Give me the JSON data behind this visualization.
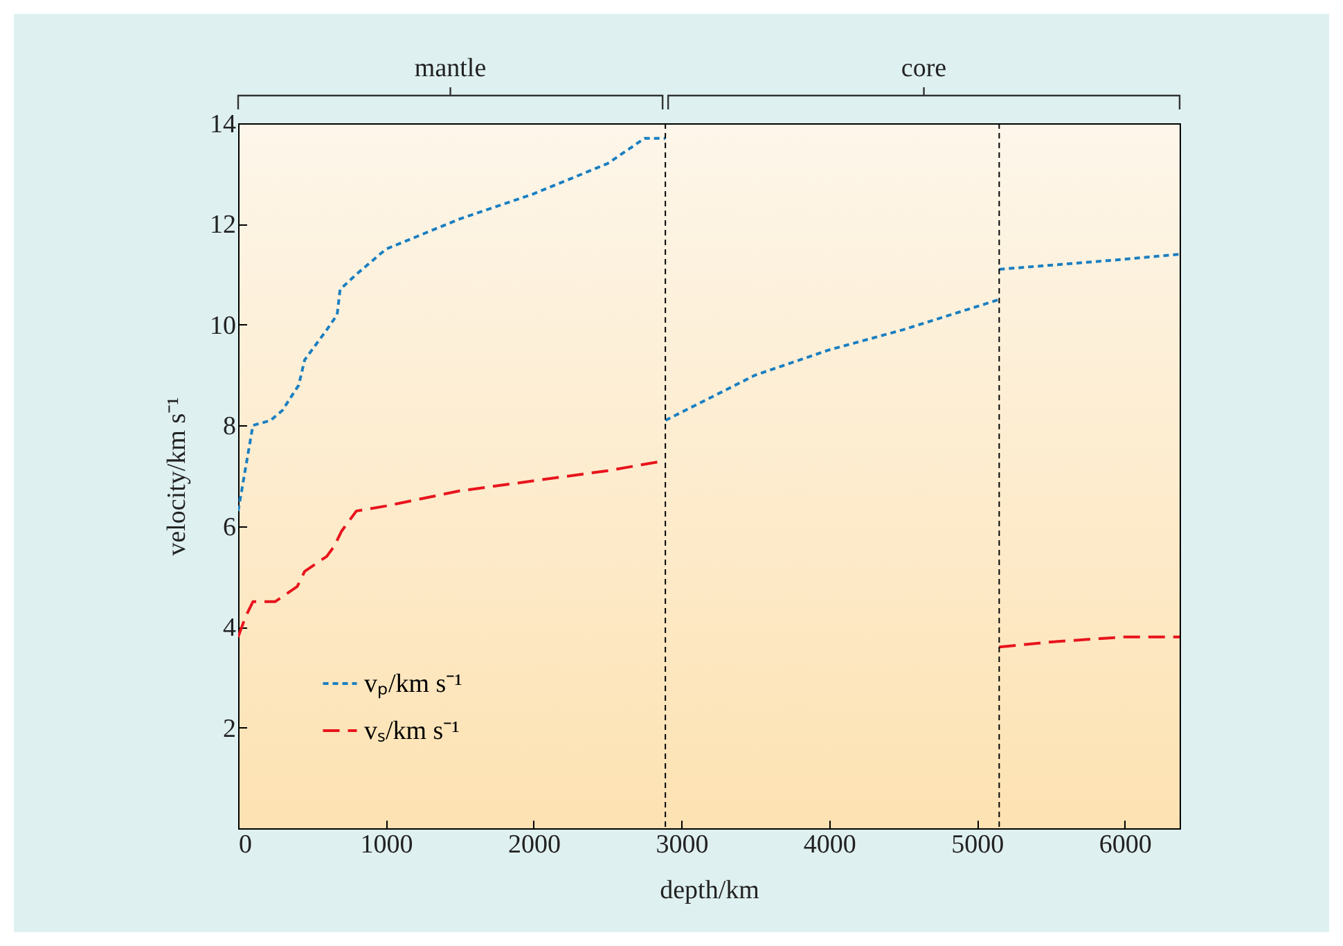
{
  "chart_data": {
    "type": "line",
    "xlabel": "depth/km",
    "ylabel": "velocity/km s⁻¹",
    "xlim": [
      0,
      6371
    ],
    "xticks": [
      0,
      1000,
      2000,
      3000,
      4000,
      5000,
      6000
    ],
    "ylim": [
      0,
      14
    ],
    "yticks": [
      {
        "value": 0,
        "label": null
      },
      2,
      4,
      6,
      8,
      10,
      12,
      14
    ],
    "series": [
      {
        "name": "vₚ/km s⁻¹",
        "color": "#1a7fc1",
        "line_style": "dotted",
        "x": [
          0,
          100,
          220,
          300,
          410,
          450,
          600,
          670,
          690,
          800,
          1000,
          1500,
          2000,
          2500,
          2750,
          2891,
          null,
          2891,
          3500,
          4000,
          4500,
          5150,
          null,
          5150,
          6000,
          6371
        ],
        "values": [
          6.3,
          8.0,
          8.1,
          8.3,
          8.8,
          9.3,
          9.9,
          10.2,
          10.7,
          11.0,
          11.5,
          12.1,
          12.6,
          13.2,
          13.7,
          13.7,
          null,
          8.1,
          9.0,
          9.5,
          9.9,
          10.5,
          null,
          11.1,
          11.3,
          11.4
        ]
      },
      {
        "name": "vₛ/km s⁻¹",
        "color": "#e8141c",
        "line_style": "dashed",
        "x": [
          0,
          50,
          100,
          250,
          400,
          450,
          600,
          650,
          700,
          800,
          1000,
          1500,
          2000,
          2500,
          2891,
          null,
          5150,
          5500,
          6000,
          6371
        ],
        "values": [
          3.8,
          4.2,
          4.5,
          4.5,
          4.8,
          5.1,
          5.4,
          5.6,
          5.9,
          6.3,
          6.4,
          6.7,
          6.9,
          7.1,
          7.3,
          null,
          3.6,
          3.7,
          3.8,
          3.8
        ]
      }
    ],
    "ref_lines": [
      {
        "axis": "x",
        "value": 2891,
        "line_style": "dotted",
        "color": "#000000"
      },
      {
        "axis": "x",
        "value": 5150,
        "line_style": "dotted",
        "color": "#000000"
      }
    ],
    "annotations": [
      "mantle",
      "core"
    ],
    "legend": "bottom left"
  }
}
